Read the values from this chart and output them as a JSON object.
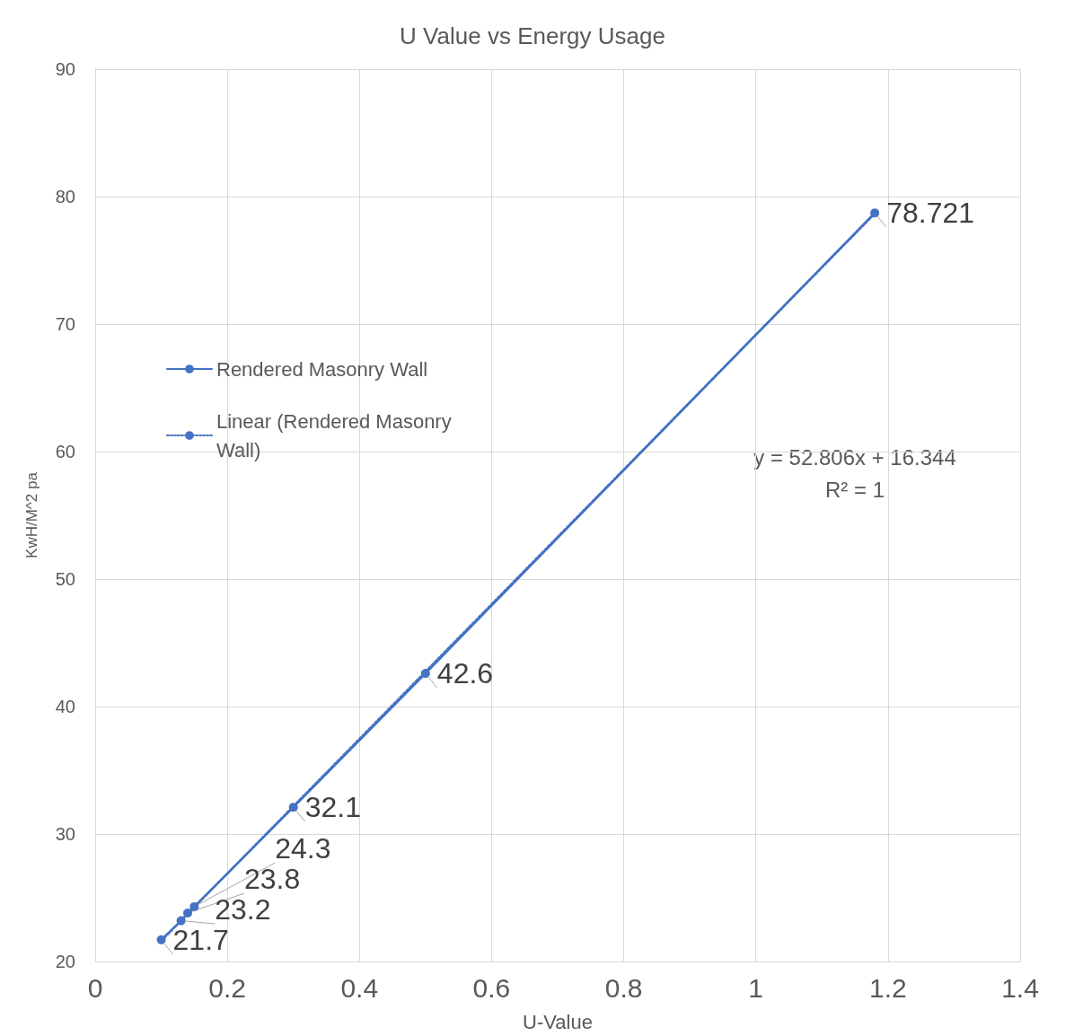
{
  "chart_data": {
    "type": "line",
    "title": "U Value vs Energy Usage",
    "xlabel": "U-Value",
    "ylabel": "KwH/M^2 pa",
    "xlim": [
      0,
      1.4
    ],
    "xticks": [
      0,
      0.2,
      0.4,
      0.6,
      0.8,
      1,
      1.2,
      1.4
    ],
    "ylim": [
      20,
      90
    ],
    "yticks": [
      20,
      30,
      40,
      50,
      60,
      70,
      80,
      90
    ],
    "grid": true,
    "legend": "top left",
    "annotations": [
      "y = 52.806x + 16.344",
      "R² = 1"
    ],
    "series": [
      {
        "name": "Rendered Masonry Wall",
        "color": "#4472c4",
        "marker": "circle",
        "line_style": "solid",
        "x": [
          0.1,
          0.13,
          0.14,
          0.15,
          0.3,
          0.5,
          1.18
        ],
        "values": [
          21.7,
          23.2,
          23.8,
          24.3,
          32.1,
          42.6,
          78.721
        ],
        "value_labels": [
          "21.7",
          "23.2",
          "23.8",
          "24.3",
          "32.1",
          "42.6",
          "78.721"
        ]
      },
      {
        "name": "Linear (Rendered Masonry Wall)",
        "type": "line",
        "color": "#4472c4",
        "marker": "none",
        "line_style": "dotted",
        "x": [
          0.1,
          1.18
        ],
        "values": [
          21.62,
          78.66
        ]
      }
    ]
  }
}
